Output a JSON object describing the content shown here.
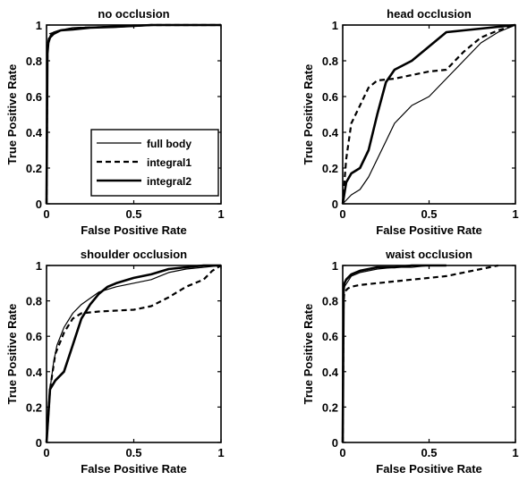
{
  "chart_data": [
    {
      "type": "line",
      "title": "no occlusion",
      "xlabel": "False Positive Rate",
      "ylabel": "True Positive Rate",
      "xlim": [
        0,
        1
      ],
      "ylim": [
        0,
        1
      ],
      "xticks": [
        "0",
        "0.5",
        "1"
      ],
      "yticks": [
        "0",
        "0.2",
        "0.4",
        "0.6",
        "0.8",
        "1"
      ],
      "grid": false,
      "legend": {
        "position": "bottom-right",
        "entries": [
          {
            "label": "full body",
            "style": "solid-thin"
          },
          {
            "label": "integral1",
            "style": "dashed"
          },
          {
            "label": "integral2",
            "style": "solid-thick"
          }
        ]
      },
      "series": [
        {
          "name": "full body",
          "style": "solid-thin",
          "x": [
            0,
            0.005,
            0.01,
            0.02,
            0.04,
            0.07,
            0.15,
            0.3,
            0.5,
            0.7,
            1.0
          ],
          "y": [
            0,
            0.85,
            0.9,
            0.94,
            0.96,
            0.97,
            0.985,
            0.99,
            1.0,
            1.0,
            1.0
          ]
        },
        {
          "name": "integral1",
          "style": "dashed",
          "x": [
            0,
            0.005,
            0.01,
            0.02,
            0.05,
            0.1,
            0.2,
            0.4,
            0.6,
            1.0
          ],
          "y": [
            0,
            0.87,
            0.91,
            0.95,
            0.96,
            0.975,
            0.985,
            0.99,
            1.0,
            1.0
          ]
        },
        {
          "name": "integral2",
          "style": "solid-thick",
          "x": [
            0,
            0.005,
            0.01,
            0.02,
            0.04,
            0.08,
            0.15,
            0.25,
            0.4,
            0.6,
            1.0
          ],
          "y": [
            0,
            0.84,
            0.9,
            0.93,
            0.95,
            0.97,
            0.975,
            0.985,
            0.99,
            1.0,
            1.0
          ]
        }
      ]
    },
    {
      "type": "line",
      "title": "head occlusion",
      "xlabel": "False Positive Rate",
      "ylabel": "True Positive Rate",
      "xlim": [
        0,
        1
      ],
      "ylim": [
        0,
        1
      ],
      "xticks": [
        "0",
        "0.5",
        "1"
      ],
      "yticks": [
        "0",
        "0.2",
        "0.4",
        "0.6",
        "0.8",
        "1"
      ],
      "grid": false,
      "series": [
        {
          "name": "full body",
          "style": "solid-thin",
          "x": [
            0,
            0.02,
            0.05,
            0.1,
            0.15,
            0.2,
            0.25,
            0.3,
            0.4,
            0.5,
            0.6,
            0.7,
            0.8,
            0.9,
            1.0
          ],
          "y": [
            0,
            0.02,
            0.05,
            0.08,
            0.15,
            0.25,
            0.35,
            0.45,
            0.55,
            0.6,
            0.7,
            0.8,
            0.9,
            0.96,
            1.0
          ]
        },
        {
          "name": "integral1",
          "style": "dashed",
          "x": [
            0,
            0.02,
            0.05,
            0.1,
            0.15,
            0.2,
            0.3,
            0.5,
            0.6,
            0.7,
            0.8,
            0.9,
            1.0
          ],
          "y": [
            0,
            0.25,
            0.45,
            0.55,
            0.65,
            0.69,
            0.7,
            0.74,
            0.75,
            0.85,
            0.93,
            0.97,
            1.0
          ]
        },
        {
          "name": "integral2",
          "style": "solid-thick",
          "x": [
            0,
            0.02,
            0.05,
            0.1,
            0.15,
            0.2,
            0.25,
            0.3,
            0.4,
            0.5,
            0.6,
            0.7,
            0.8,
            0.9,
            1.0
          ],
          "y": [
            0,
            0.12,
            0.17,
            0.2,
            0.3,
            0.5,
            0.68,
            0.75,
            0.8,
            0.88,
            0.96,
            0.97,
            0.98,
            0.99,
            1.0
          ]
        }
      ]
    },
    {
      "type": "line",
      "title": "shoulder occlusion",
      "xlabel": "False Positive Rate",
      "ylabel": "True Positive Rate",
      "xlim": [
        0,
        1
      ],
      "ylim": [
        0,
        1
      ],
      "xticks": [
        "0",
        "0.5",
        "1"
      ],
      "yticks": [
        "0",
        "0.2",
        "0.4",
        "0.6",
        "0.8",
        "1"
      ],
      "grid": false,
      "series": [
        {
          "name": "full body",
          "style": "solid-thin",
          "x": [
            0,
            0.01,
            0.02,
            0.04,
            0.06,
            0.1,
            0.15,
            0.2,
            0.3,
            0.4,
            0.5,
            0.6,
            0.7,
            0.8,
            0.9,
            1.0
          ],
          "y": [
            0,
            0.2,
            0.3,
            0.45,
            0.55,
            0.65,
            0.73,
            0.78,
            0.85,
            0.88,
            0.9,
            0.92,
            0.96,
            0.98,
            0.99,
            1.0
          ]
        },
        {
          "name": "integral1",
          "style": "dashed",
          "x": [
            0,
            0.02,
            0.05,
            0.1,
            0.15,
            0.2,
            0.3,
            0.5,
            0.6,
            0.7,
            0.8,
            0.9,
            0.95,
            1.0
          ],
          "y": [
            0,
            0.3,
            0.5,
            0.62,
            0.7,
            0.73,
            0.74,
            0.75,
            0.77,
            0.82,
            0.88,
            0.92,
            0.97,
            1.0
          ]
        },
        {
          "name": "integral2",
          "style": "solid-thick",
          "x": [
            0,
            0.02,
            0.05,
            0.1,
            0.15,
            0.2,
            0.25,
            0.3,
            0.35,
            0.4,
            0.5,
            0.6,
            0.7,
            0.8,
            0.9,
            1.0
          ],
          "y": [
            0,
            0.3,
            0.35,
            0.4,
            0.55,
            0.7,
            0.78,
            0.84,
            0.88,
            0.9,
            0.93,
            0.95,
            0.98,
            0.99,
            1.0,
            1.0
          ]
        }
      ]
    },
    {
      "type": "line",
      "title": "waist occlusion",
      "xlabel": "False Positive Rate",
      "ylabel": "True Positive Rate",
      "xlim": [
        0,
        1
      ],
      "ylim": [
        0,
        1
      ],
      "xticks": [
        "0",
        "0.5",
        "1"
      ],
      "yticks": [
        "0",
        "0.2",
        "0.4",
        "0.6",
        "0.8",
        "1"
      ],
      "grid": false,
      "series": [
        {
          "name": "full body",
          "style": "solid-thin",
          "x": [
            0,
            0.005,
            0.01,
            0.03,
            0.05,
            0.1,
            0.2,
            0.3,
            0.4,
            0.5,
            0.6
          ],
          "y": [
            0,
            0.85,
            0.88,
            0.91,
            0.94,
            0.96,
            0.98,
            0.99,
            0.99,
            1.0,
            1.0
          ]
        },
        {
          "name": "integral1",
          "style": "dashed",
          "x": [
            0,
            0.005,
            0.01,
            0.03,
            0.05,
            0.1,
            0.2,
            0.3,
            0.4,
            0.5,
            0.6,
            0.7,
            0.8,
            0.9
          ],
          "y": [
            0,
            0.8,
            0.85,
            0.87,
            0.88,
            0.89,
            0.9,
            0.91,
            0.92,
            0.93,
            0.94,
            0.96,
            0.98,
            1.0
          ]
        },
        {
          "name": "integral2",
          "style": "solid-thick",
          "x": [
            0,
            0.005,
            0.01,
            0.02,
            0.05,
            0.1,
            0.2,
            0.3,
            0.4,
            0.5,
            0.6
          ],
          "y": [
            0,
            0.86,
            0.9,
            0.92,
            0.95,
            0.97,
            0.99,
            0.99,
            1.0,
            1.0,
            1.0
          ]
        }
      ]
    }
  ]
}
